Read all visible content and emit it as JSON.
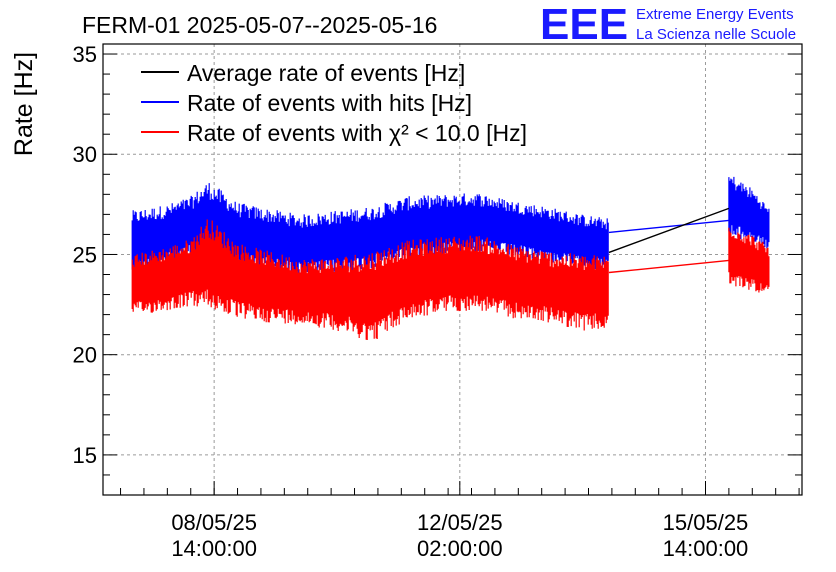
{
  "header": {
    "title": "FERM-01 2025-05-07--2025-05-16",
    "brand_logo": "EEE",
    "brand_line1": "Extreme Energy Events",
    "brand_line2": "La Scienza nelle Scuole"
  },
  "colors": {
    "average": "#000000",
    "hits": "#0000ff",
    "chi2": "#ff0000",
    "brand": "#1a1aff",
    "grid": "#9a9a9a"
  },
  "chart_data": {
    "type": "line",
    "title": "FERM-01 2025-05-07--2025-05-16",
    "ylabel": "Rate [Hz]",
    "xlabel": "",
    "ylim": [
      13,
      35.5
    ],
    "xlim": [
      "2025-05-07 00:00:00",
      "2025-05-16 23:00:00"
    ],
    "yticks": [
      15,
      20,
      25,
      30,
      35
    ],
    "xticks": [
      {
        "t": "2025-05-08 14:00:00",
        "line1": "08/05/25",
        "line2": "14:00:00"
      },
      {
        "t": "2025-05-12 02:00:00",
        "line1": "12/05/25",
        "line2": "02:00:00"
      },
      {
        "t": "2025-05-15 14:00:00",
        "line1": "15/05/25",
        "line2": "14:00:00"
      }
    ],
    "grid": true,
    "legend_position": "top-left",
    "series": [
      {
        "name": "Average rate of events [Hz]",
        "color": "#000000",
        "style": "line",
        "points": [
          [
            "2025-05-14 05:00:00",
            25.1
          ],
          [
            "2025-05-15 22:00:00",
            27.3
          ]
        ]
      },
      {
        "name": "Rate of events with hits [Hz]",
        "color": "#0000ff",
        "style": "band",
        "segments": [
          {
            "x": [
              "2025-05-07 10:00:00",
              "2025-05-07 22:00:00",
              "2025-05-08 06:00:00",
              "2025-05-08 12:00:00",
              "2025-05-08 22:00:00",
              "2025-05-09 08:00:00",
              "2025-05-09 20:00:00",
              "2025-05-10 08:00:00",
              "2025-05-10 20:00:00",
              "2025-05-11 08:00:00",
              "2025-05-11 20:00:00",
              "2025-05-12 08:00:00",
              "2025-05-12 20:00:00",
              "2025-05-13 08:00:00",
              "2025-05-13 20:00:00",
              "2025-05-14 05:00:00"
            ],
            "low": [
              24.0,
              24.4,
              24.8,
              24.6,
              24.3,
              24.2,
              23.9,
              24.1,
              24.3,
              24.7,
              25.0,
              25.1,
              24.9,
              24.6,
              24.3,
              24.2
            ],
            "high": [
              27.2,
              27.5,
              27.9,
              28.7,
              27.6,
              27.3,
              27.0,
              27.2,
              27.4,
              27.9,
              28.0,
              28.1,
              27.7,
              27.4,
              27.0,
              26.8
            ]
          },
          {
            "x": [
              "2025-05-15 22:00:00",
              "2025-05-16 06:00:00",
              "2025-05-16 12:00:00"
            ],
            "low": [
              25.8,
              25.6,
              25.2
            ],
            "high": [
              29.1,
              28.3,
              27.3
            ]
          }
        ],
        "bridge": [
          [
            "2025-05-14 05:00:00",
            26.1
          ],
          [
            "2025-05-15 22:00:00",
            26.7
          ]
        ]
      },
      {
        "name": "Rate of events with χ² < 10.0 [Hz]",
        "color": "#ff0000",
        "style": "band",
        "segments": [
          {
            "x": [
              "2025-05-07 10:00:00",
              "2025-05-07 22:00:00",
              "2025-05-08 06:00:00",
              "2025-05-08 12:00:00",
              "2025-05-08 22:00:00",
              "2025-05-09 08:00:00",
              "2025-05-09 20:00:00",
              "2025-05-10 08:00:00",
              "2025-05-10 20:00:00",
              "2025-05-11 08:00:00",
              "2025-05-11 20:00:00",
              "2025-05-12 08:00:00",
              "2025-05-12 20:00:00",
              "2025-05-13 08:00:00",
              "2025-05-13 20:00:00",
              "2025-05-14 05:00:00"
            ],
            "low": [
              21.9,
              22.2,
              22.4,
              22.3,
              21.8,
              21.6,
              21.5,
              21.2,
              20.6,
              21.7,
              22.1,
              22.2,
              21.8,
              21.6,
              21.2,
              21.2
            ],
            "high": [
              25.0,
              25.4,
              25.8,
              26.9,
              25.6,
              25.2,
              24.8,
              24.9,
              25.2,
              25.7,
              25.9,
              26.0,
              25.5,
              25.2,
              25.0,
              25.0
            ]
          },
          {
            "x": [
              "2025-05-15 22:00:00",
              "2025-05-16 06:00:00",
              "2025-05-16 12:00:00"
            ],
            "low": [
              23.4,
              23.2,
              22.9
            ],
            "high": [
              26.6,
              26.0,
              25.4
            ]
          }
        ],
        "bridge": [
          [
            "2025-05-14 05:00:00",
            24.1
          ],
          [
            "2025-05-15 22:00:00",
            24.7
          ]
        ]
      }
    ]
  }
}
